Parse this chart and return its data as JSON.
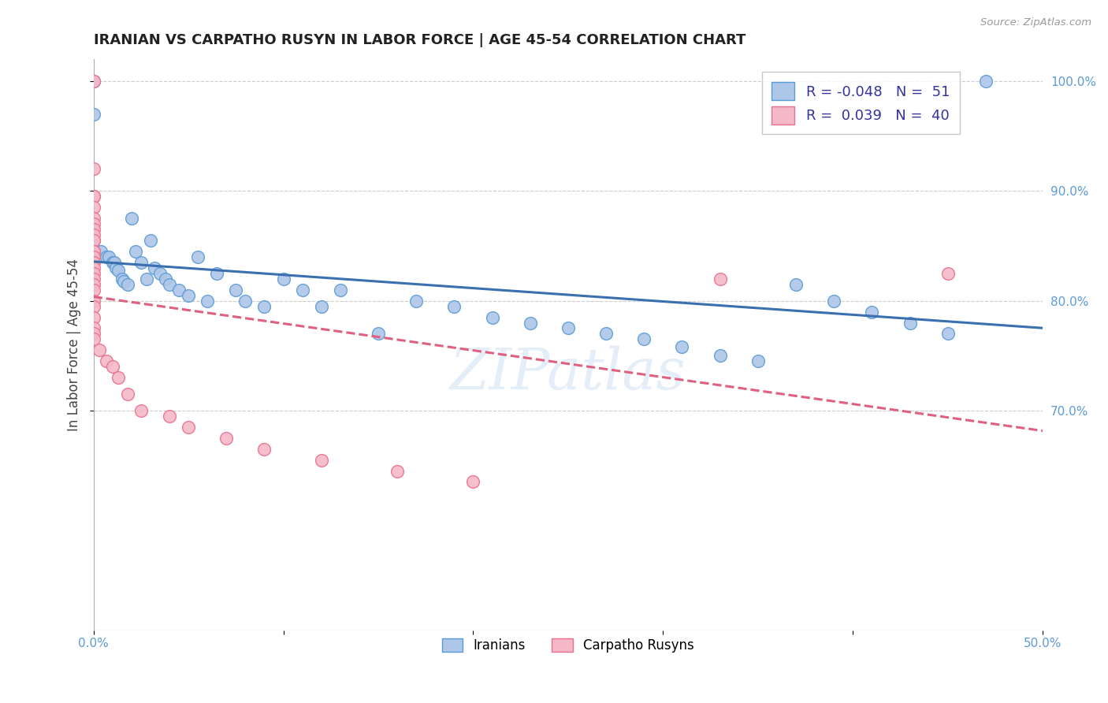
{
  "title": "IRANIAN VS CARPATHO RUSYN IN LABOR FORCE | AGE 45-54 CORRELATION CHART",
  "source_text": "Source: ZipAtlas.com",
  "ylabel": "In Labor Force | Age 45-54",
  "xlim": [
    0.0,
    0.5
  ],
  "ylim": [
    0.5,
    1.02
  ],
  "xtick_vals": [
    0.0,
    0.1,
    0.2,
    0.3,
    0.4,
    0.5
  ],
  "xtick_labels": [
    "0.0%",
    "",
    "",
    "",
    "",
    "50.0%"
  ],
  "ytick_positions": [
    0.7,
    0.8,
    0.9,
    1.0
  ],
  "yticklabels": [
    "70.0%",
    "80.0%",
    "90.0%",
    "100.0%"
  ],
  "legend_r_blue": "-0.048",
  "legend_n_blue": "51",
  "legend_r_pink": "0.039",
  "legend_n_pink": "40",
  "blue_fill": "#aec6e8",
  "blue_edge": "#5b9bd5",
  "pink_fill": "#f5b8c8",
  "pink_edge": "#e8708a",
  "blue_line_color": "#3a6fb0",
  "pink_line_color": "#e06080",
  "background_color": "#ffffff",
  "grid_color": "#cccccc",
  "watermark": "ZIPatlas",
  "iran_x": [
    0.0,
    0.0,
    0.0,
    0.004,
    0.007,
    0.008,
    0.01,
    0.011,
    0.012,
    0.013,
    0.015,
    0.016,
    0.018,
    0.02,
    0.022,
    0.025,
    0.028,
    0.03,
    0.032,
    0.035,
    0.038,
    0.04,
    0.045,
    0.05,
    0.055,
    0.06,
    0.065,
    0.075,
    0.08,
    0.09,
    0.1,
    0.11,
    0.12,
    0.13,
    0.15,
    0.17,
    0.19,
    0.21,
    0.23,
    0.25,
    0.27,
    0.29,
    0.31,
    0.33,
    0.35,
    0.37,
    0.39,
    0.41,
    0.43,
    0.45,
    0.47
  ],
  "iran_y": [
    1.0,
    0.97,
    0.855,
    0.845,
    0.84,
    0.84,
    0.835,
    0.835,
    0.83,
    0.828,
    0.82,
    0.818,
    0.815,
    0.875,
    0.845,
    0.835,
    0.82,
    0.855,
    0.83,
    0.825,
    0.82,
    0.815,
    0.81,
    0.805,
    0.84,
    0.8,
    0.825,
    0.81,
    0.8,
    0.795,
    0.82,
    0.81,
    0.795,
    0.81,
    0.77,
    0.8,
    0.795,
    0.785,
    0.78,
    0.775,
    0.77,
    0.765,
    0.758,
    0.75,
    0.745,
    0.815,
    0.8,
    0.79,
    0.78,
    0.77,
    1.0
  ],
  "carp_x": [
    0.0,
    0.0,
    0.0,
    0.0,
    0.0,
    0.0,
    0.0,
    0.0,
    0.0,
    0.0,
    0.0,
    0.0,
    0.0,
    0.0,
    0.0,
    0.0,
    0.0,
    0.0,
    0.0,
    0.0,
    0.0,
    0.0,
    0.0,
    0.0,
    0.0,
    0.003,
    0.007,
    0.01,
    0.013,
    0.018,
    0.025,
    0.04,
    0.05,
    0.07,
    0.09,
    0.12,
    0.16,
    0.2,
    0.33,
    0.45
  ],
  "carp_y": [
    1.0,
    0.92,
    0.895,
    0.895,
    0.885,
    0.875,
    0.87,
    0.865,
    0.86,
    0.855,
    0.845,
    0.845,
    0.84,
    0.835,
    0.83,
    0.825,
    0.82,
    0.815,
    0.81,
    0.8,
    0.795,
    0.785,
    0.775,
    0.77,
    0.765,
    0.755,
    0.745,
    0.74,
    0.73,
    0.715,
    0.7,
    0.695,
    0.685,
    0.675,
    0.665,
    0.655,
    0.645,
    0.635,
    0.82,
    0.825
  ]
}
